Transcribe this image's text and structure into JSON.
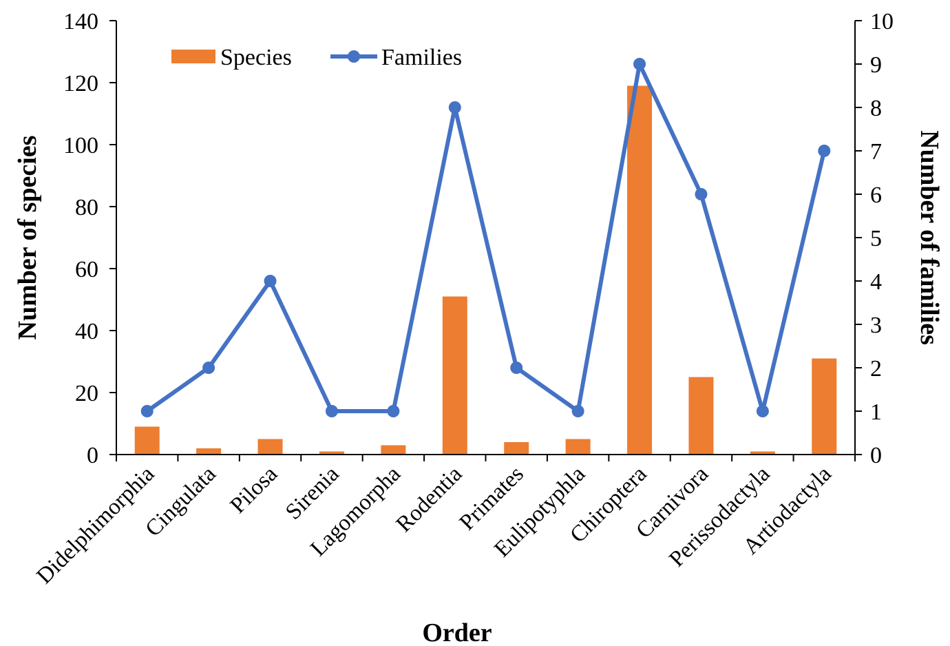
{
  "chart_data": {
    "type": "bar+line",
    "categories": [
      "Didelphimorphia",
      "Cingulata",
      "Pilosa",
      "Sirenia",
      "Lagomorpha",
      "Rodentia",
      "Primates",
      "Eulipotyphla",
      "Chiroptera",
      "Carnivora",
      "Perissodactyla",
      "Artiodactyla"
    ],
    "series": [
      {
        "name": "Species",
        "type": "bar",
        "axis": "left",
        "color": "#ED7D31",
        "values": [
          9,
          2,
          5,
          1,
          3,
          51,
          4,
          5,
          119,
          25,
          1,
          31
        ]
      },
      {
        "name": "Families",
        "type": "line",
        "axis": "right",
        "color": "#4472C4",
        "values": [
          1,
          2,
          4,
          1,
          1,
          8,
          2,
          1,
          9,
          6,
          1,
          7
        ]
      }
    ],
    "xlabel": "Order",
    "ylabel": "Number of species",
    "y2label": "Number of families",
    "ylim": [
      0,
      140
    ],
    "y2lim": [
      0,
      10
    ],
    "yticks": [
      "0",
      "20",
      "40",
      "60",
      "80",
      "100",
      "120",
      "140"
    ],
    "y2ticks": [
      "0",
      "1",
      "2",
      "3",
      "4",
      "5",
      "6",
      "7",
      "8",
      "9",
      "10"
    ],
    "grid": false,
    "legend": "top-left"
  }
}
